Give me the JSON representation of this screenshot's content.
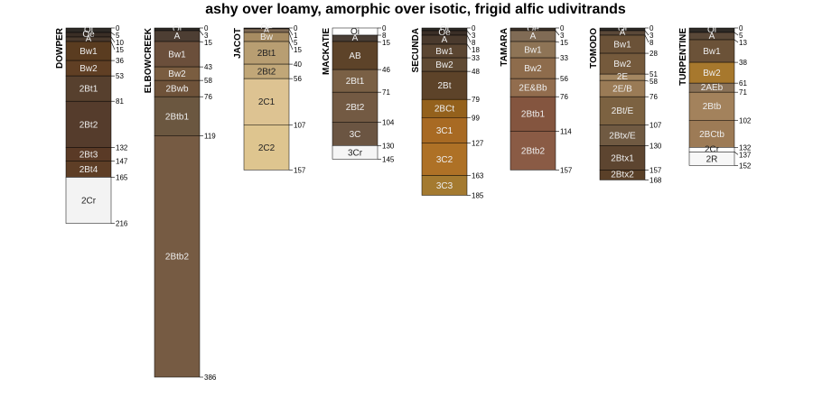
{
  "chart_data": {
    "type": "soil-profile-sketch",
    "title": "ashy over loamy, amorphic over isotic, frigid alfic udivitrands",
    "depth_units": "cm",
    "ylim": [
      0,
      386
    ],
    "profiles": [
      {
        "name": "DOWPER",
        "horizons": [
          {
            "name": "Oi",
            "top": 0,
            "bottom": 5,
            "color": "#2e2a26"
          },
          {
            "name": "Oe",
            "top": 5,
            "bottom": 10,
            "color": "#3a2e26"
          },
          {
            "name": "A",
            "top": 10,
            "bottom": 15,
            "color": "#4a3a2d"
          },
          {
            "name": "Bw1",
            "top": 15,
            "bottom": 36,
            "color": "#5a3c20"
          },
          {
            "name": "Bw2",
            "top": 36,
            "bottom": 53,
            "color": "#603f24"
          },
          {
            "name": "2Bt1",
            "top": 53,
            "bottom": 81,
            "color": "#57402e"
          },
          {
            "name": "2Bt2",
            "top": 81,
            "bottom": 132,
            "color": "#553c2c"
          },
          {
            "name": "2Bt3",
            "top": 132,
            "bottom": 147,
            "color": "#5a3a26"
          },
          {
            "name": "2Bt4",
            "top": 147,
            "bottom": 165,
            "color": "#5e3e26"
          },
          {
            "name": "2Cr",
            "top": 165,
            "bottom": 216,
            "color": "#f3f3f3"
          }
        ]
      },
      {
        "name": "ELBOWCREEK",
        "horizons": [
          {
            "name": "Oi",
            "top": 0,
            "bottom": 3,
            "color": "#2e2a26"
          },
          {
            "name": "A",
            "top": 3,
            "bottom": 15,
            "color": "#4d3e33"
          },
          {
            "name": "Bw1",
            "top": 15,
            "bottom": 43,
            "color": "#6b4f3b"
          },
          {
            "name": "Bw2",
            "top": 43,
            "bottom": 58,
            "color": "#7a5d40"
          },
          {
            "name": "2Bwb",
            "top": 58,
            "bottom": 76,
            "color": "#6e5239"
          },
          {
            "name": "2Btb1",
            "top": 76,
            "bottom": 119,
            "color": "#6b5740"
          },
          {
            "name": "2Btb2",
            "top": 119,
            "bottom": 386,
            "color": "#765b43"
          }
        ]
      },
      {
        "name": "JACOT",
        "horizons": [
          {
            "name": "Oe",
            "top": 0,
            "bottom": 1,
            "color": "#3c3229"
          },
          {
            "name": "A",
            "top": 1,
            "bottom": 5,
            "color": "#806b55"
          },
          {
            "name": "Bw",
            "top": 5,
            "bottom": 15,
            "color": "#a78c62"
          },
          {
            "name": "2Bt1",
            "top": 15,
            "bottom": 40,
            "color": "#b89e72"
          },
          {
            "name": "2Bt2",
            "top": 40,
            "bottom": 56,
            "color": "#c1a778"
          },
          {
            "name": "2C1",
            "top": 56,
            "bottom": 107,
            "color": "#ddc392"
          },
          {
            "name": "2C2",
            "top": 107,
            "bottom": 157,
            "color": "#dec58f"
          }
        ]
      },
      {
        "name": "MACKATIE",
        "horizons": [
          {
            "name": "Oi",
            "top": 0,
            "bottom": 8,
            "color": "#ffffff"
          },
          {
            "name": "A",
            "top": 8,
            "bottom": 15,
            "color": "#4a3e35"
          },
          {
            "name": "AB",
            "top": 15,
            "bottom": 46,
            "color": "#5d4329"
          },
          {
            "name": "2Bt1",
            "top": 46,
            "bottom": 71,
            "color": "#7a6045"
          },
          {
            "name": "2Bt2",
            "top": 71,
            "bottom": 104,
            "color": "#735a43"
          },
          {
            "name": "3C",
            "top": 104,
            "bottom": 130,
            "color": "#6b5542"
          },
          {
            "name": "3Cr",
            "top": 130,
            "bottom": 145,
            "color": "#f5f5f5"
          }
        ]
      },
      {
        "name": "SECUNDA",
        "horizons": [
          {
            "name": "Oi",
            "top": 0,
            "bottom": 3,
            "color": "#2e2a26"
          },
          {
            "name": "Oe",
            "top": 3,
            "bottom": 8,
            "color": "#3a2e26"
          },
          {
            "name": "A",
            "top": 8,
            "bottom": 18,
            "color": "#4a3a2d"
          },
          {
            "name": "Bw1",
            "top": 18,
            "bottom": 33,
            "color": "#5b4632"
          },
          {
            "name": "Bw2",
            "top": 33,
            "bottom": 48,
            "color": "#604a33"
          },
          {
            "name": "2Bt",
            "top": 48,
            "bottom": 79,
            "color": "#5d4329"
          },
          {
            "name": "2BCt",
            "top": 79,
            "bottom": 99,
            "color": "#94611c"
          },
          {
            "name": "3C1",
            "top": 99,
            "bottom": 127,
            "color": "#a86a23"
          },
          {
            "name": "3C2",
            "top": 127,
            "bottom": 163,
            "color": "#ae7126"
          },
          {
            "name": "3C3",
            "top": 163,
            "bottom": 185,
            "color": "#a47a30"
          }
        ]
      },
      {
        "name": "TAMARA",
        "horizons": [
          {
            "name": "Oe",
            "top": 0,
            "bottom": 3,
            "color": "#3c3229"
          },
          {
            "name": "A",
            "top": 3,
            "bottom": 15,
            "color": "#806b55"
          },
          {
            "name": "Bw1",
            "top": 15,
            "bottom": 33,
            "color": "#8e7456"
          },
          {
            "name": "Bw2",
            "top": 33,
            "bottom": 56,
            "color": "#8e6c4c"
          },
          {
            "name": "2E&Bb",
            "top": 56,
            "bottom": 76,
            "color": "#926d4e"
          },
          {
            "name": "2Btb1",
            "top": 76,
            "bottom": 114,
            "color": "#84553f"
          },
          {
            "name": "2Btb2",
            "top": 114,
            "bottom": 157,
            "color": "#8a5b45"
          }
        ]
      },
      {
        "name": "TOMODO",
        "horizons": [
          {
            "name": "Oi",
            "top": 0,
            "bottom": 3,
            "color": "#2e2a26"
          },
          {
            "name": "A",
            "top": 3,
            "bottom": 8,
            "color": "#5a4838"
          },
          {
            "name": "Bw1",
            "top": 8,
            "bottom": 28,
            "color": "#6b5238"
          },
          {
            "name": "Bw2",
            "top": 28,
            "bottom": 51,
            "color": "#755a3c"
          },
          {
            "name": "2E",
            "top": 51,
            "bottom": 58,
            "color": "#a48761"
          },
          {
            "name": "2E/B",
            "top": 58,
            "bottom": 76,
            "color": "#9a7b56"
          },
          {
            "name": "2Bt/E",
            "top": 76,
            "bottom": 107,
            "color": "#7c6241"
          },
          {
            "name": "2Btx/E",
            "top": 107,
            "bottom": 130,
            "color": "#705a42"
          },
          {
            "name": "2Btx1",
            "top": 130,
            "bottom": 157,
            "color": "#5d4530"
          },
          {
            "name": "2Btx2",
            "top": 157,
            "bottom": 168,
            "color": "#5a4028"
          }
        ]
      },
      {
        "name": "TURPENTINE",
        "horizons": [
          {
            "name": "Oi",
            "top": 0,
            "bottom": 5,
            "color": "#2e2a26"
          },
          {
            "name": "A",
            "top": 5,
            "bottom": 13,
            "color": "#5a4838"
          },
          {
            "name": "Bw1",
            "top": 13,
            "bottom": 38,
            "color": "#6b5238"
          },
          {
            "name": "Bw2",
            "top": 38,
            "bottom": 61,
            "color": "#a7782d"
          },
          {
            "name": "2AEb",
            "top": 61,
            "bottom": 71,
            "color": "#8a7258"
          },
          {
            "name": "2Btb",
            "top": 71,
            "bottom": 102,
            "color": "#a3825c"
          },
          {
            "name": "2BCtb",
            "top": 102,
            "bottom": 132,
            "color": "#9d7b56"
          },
          {
            "name": "2Cr",
            "top": 132,
            "bottom": 137,
            "color": "#ffffff"
          },
          {
            "name": "2R",
            "top": 137,
            "bottom": 152,
            "color": "#f7f7f7"
          }
        ]
      }
    ]
  }
}
